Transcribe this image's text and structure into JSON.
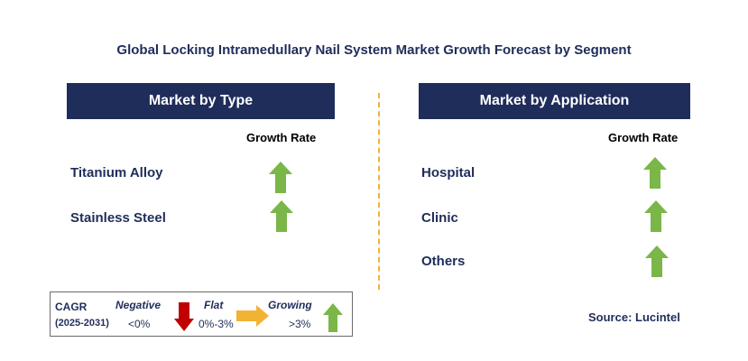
{
  "title": "Global Locking Intramedullary Nail System Market Growth Forecast by Segment",
  "colors": {
    "navy": "#1f2d5a",
    "green": "#7ab648",
    "red": "#c00000",
    "amber": "#f2b234"
  },
  "type_panel": {
    "header": "Market by Type",
    "growth_label": "Growth Rate",
    "rows": [
      {
        "label": "Titanium Alloy",
        "trend": "growing"
      },
      {
        "label": "Stainless Steel",
        "trend": "growing"
      }
    ]
  },
  "application_panel": {
    "header": "Market by Application",
    "growth_label": "Growth Rate",
    "rows": [
      {
        "label": "Hospital",
        "trend": "growing"
      },
      {
        "label": "Clinic",
        "trend": "growing"
      },
      {
        "label": "Others",
        "trend": "growing"
      }
    ]
  },
  "legend": {
    "cagr": "CAGR",
    "period": "(2025-2031)",
    "negative": {
      "label": "Negative",
      "range": "<0%",
      "icon": "arrow-down-red-icon"
    },
    "flat": {
      "label": "Flat",
      "range": "0%-3%",
      "icon": "arrow-right-amber-icon"
    },
    "growing": {
      "label": "Growing",
      "range": ">3%",
      "icon": "arrow-up-green-icon"
    }
  },
  "source": "Source: Lucintel"
}
